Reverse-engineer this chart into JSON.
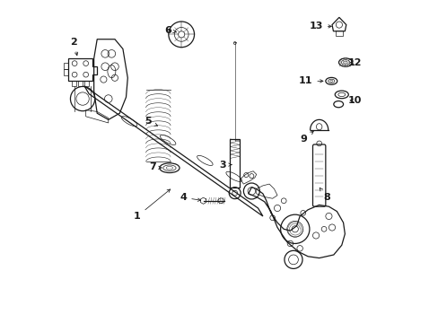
{
  "background_color": "#ffffff",
  "line_color": "#1a1a1a",
  "figsize": [
    4.89,
    3.6
  ],
  "dpi": 100,
  "lw_main": 0.9,
  "lw_thin": 0.5,
  "fs_label": 8,
  "labels": {
    "1": [
      0.245,
      0.335,
      0.29,
      0.3
    ],
    "2": [
      0.05,
      0.855,
      0.075,
      0.87
    ],
    "3": [
      0.515,
      0.485,
      0.555,
      0.49
    ],
    "4": [
      0.39,
      0.385,
      0.43,
      0.375
    ],
    "5": [
      0.283,
      0.62,
      0.318,
      0.61
    ],
    "6": [
      0.34,
      0.905,
      0.375,
      0.9
    ],
    "7": [
      0.295,
      0.475,
      0.335,
      0.482
    ],
    "8": [
      0.82,
      0.39,
      0.795,
      0.43
    ],
    "9": [
      0.73,
      0.55,
      0.76,
      0.56
    ],
    "10": [
      0.895,
      0.66,
      0.875,
      0.66
    ],
    "11": [
      0.73,
      0.72,
      0.76,
      0.718
    ],
    "12": [
      0.895,
      0.785,
      0.87,
      0.785
    ],
    "13": [
      0.8,
      0.905,
      0.835,
      0.9
    ]
  }
}
